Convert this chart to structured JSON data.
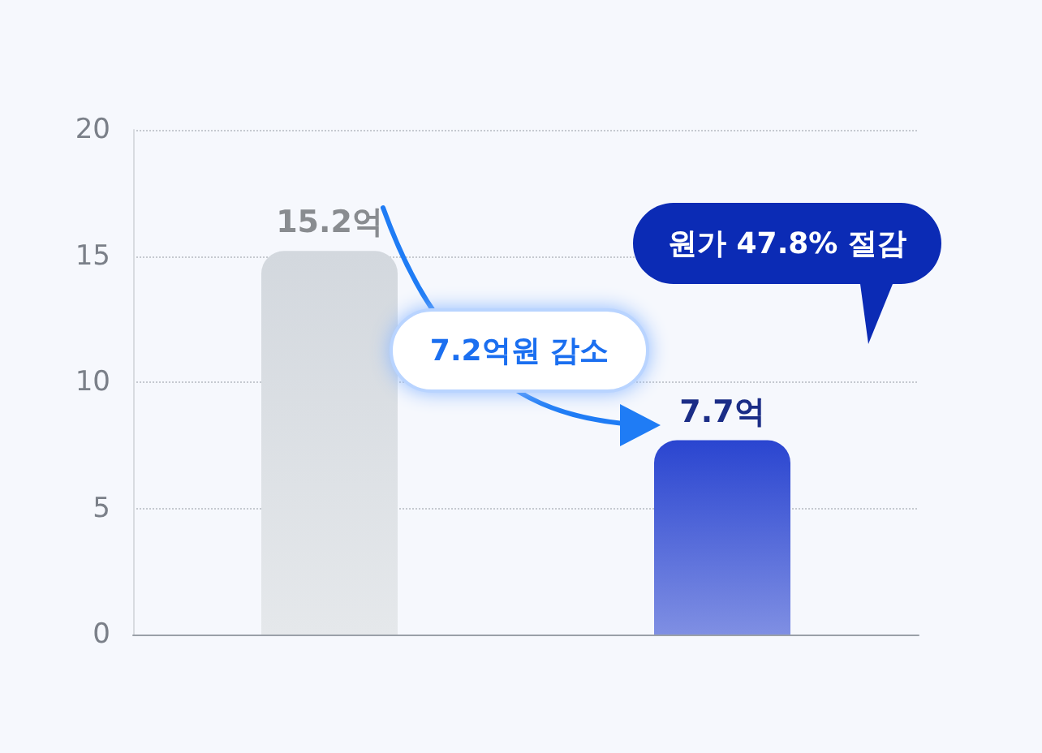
{
  "chart_data": {
    "type": "bar",
    "categories": [
      null,
      null
    ],
    "values": [
      15.2,
      7.7
    ],
    "colors": [
      "#d3d8de",
      "#2a45d0"
    ],
    "value_labels": [
      "15.2억",
      "7.7억"
    ],
    "ylim": [
      0,
      20
    ],
    "yticks": [
      0,
      5,
      10,
      15,
      20
    ],
    "grid": "y",
    "annotations": [
      "7.2억원 감소",
      "원가 47.8% 절감"
    ]
  }
}
